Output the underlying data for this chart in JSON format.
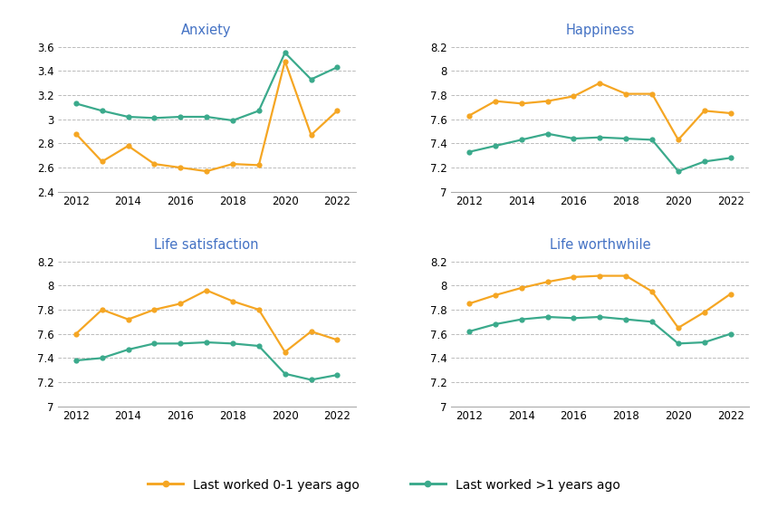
{
  "years": [
    2012,
    2013,
    2014,
    2015,
    2016,
    2017,
    2018,
    2019,
    2020,
    2021,
    2022
  ],
  "anxiety": {
    "orange": [
      2.88,
      2.65,
      2.78,
      2.63,
      2.6,
      2.57,
      2.63,
      2.62,
      3.48,
      2.87,
      3.07
    ],
    "green": [
      3.13,
      3.07,
      3.02,
      3.01,
      3.02,
      3.02,
      2.99,
      3.07,
      3.55,
      3.33,
      3.43
    ]
  },
  "happiness": {
    "orange": [
      7.63,
      7.75,
      7.73,
      7.75,
      7.79,
      7.9,
      7.81,
      7.81,
      7.43,
      7.67,
      7.65
    ],
    "green": [
      7.33,
      7.38,
      7.43,
      7.48,
      7.44,
      7.45,
      7.44,
      7.43,
      7.17,
      7.25,
      7.28
    ]
  },
  "life_satisfaction": {
    "orange": [
      7.6,
      7.8,
      7.72,
      7.8,
      7.85,
      7.96,
      7.87,
      7.8,
      7.45,
      7.62,
      7.55
    ],
    "green": [
      7.38,
      7.4,
      7.47,
      7.52,
      7.52,
      7.53,
      7.52,
      7.5,
      7.27,
      7.22,
      7.26
    ]
  },
  "life_worthwhile": {
    "orange": [
      7.85,
      7.92,
      7.98,
      8.03,
      8.07,
      8.08,
      8.08,
      7.95,
      7.65,
      7.78,
      7.93
    ],
    "green": [
      7.62,
      7.68,
      7.72,
      7.74,
      7.73,
      7.74,
      7.72,
      7.7,
      7.52,
      7.53,
      7.6
    ]
  },
  "color_orange": "#F5A623",
  "color_green": "#3BAA8C",
  "subplot_titles": [
    "Anxiety",
    "Happiness",
    "Life satisfaction",
    "Life worthwhile"
  ],
  "legend_labels": [
    "Last worked 0-1 years ago",
    "Last worked >1 years ago"
  ],
  "ylim_anxiety": [
    2.4,
    3.65
  ],
  "yticks_anxiety": [
    2.4,
    2.6,
    2.8,
    3.0,
    3.2,
    3.4,
    3.6
  ],
  "ylim_happiness": [
    7.0,
    8.25
  ],
  "yticks_happiness": [
    7.0,
    7.2,
    7.4,
    7.6,
    7.8,
    8.0,
    8.2
  ],
  "ylim_life_sat": [
    7.0,
    8.25
  ],
  "yticks_life_sat": [
    7.0,
    7.2,
    7.4,
    7.6,
    7.8,
    8.0,
    8.2
  ],
  "ylim_life_worth": [
    7.0,
    8.25
  ],
  "yticks_life_worth": [
    7.0,
    7.2,
    7.4,
    7.6,
    7.8,
    8.0,
    8.2
  ],
  "xticks": [
    2012,
    2014,
    2016,
    2018,
    2020,
    2022
  ],
  "background_color": "#FFFFFF",
  "title_color": "#4472C4",
  "title_fontsize": 10.5,
  "tick_fontsize": 8.5,
  "line_width": 1.6,
  "marker_size": 4.5
}
